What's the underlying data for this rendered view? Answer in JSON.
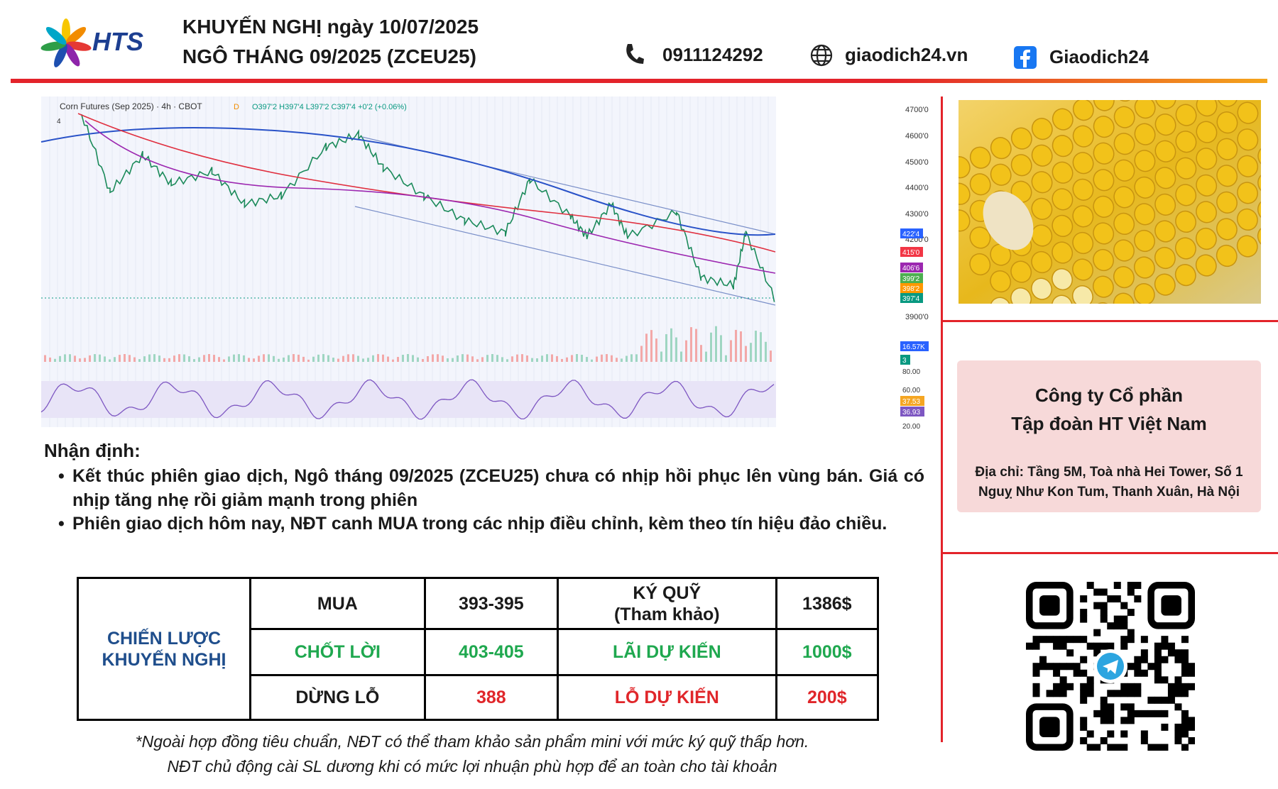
{
  "header": {
    "logo": "HTS",
    "title_line1": "KHUYẾN NGHỊ ngày 10/07/2025",
    "title_line2": "NGÔ THÁNG 09/2025 (ZCEU25)",
    "phone": "0911124292",
    "website": "giaodich24.vn",
    "facebook": "Giaodich24"
  },
  "chart_panel": {
    "symbol": "Corn Futures (Sep 2025) · 4h · CBOT",
    "ohlc": "O397'2 H397'4 L397'2 C397'4 +0'2 (+0.06%)",
    "interval_badge": "D",
    "collapse": "4",
    "price_axis": [
      "4700'0",
      "4600'0",
      "4500'0",
      "4400'0",
      "4300'0",
      "4200'0",
      "3900'0"
    ],
    "price_tags": [
      "422'4",
      "415'0",
      "406'6",
      "399'2",
      "398'2",
      "397'4"
    ],
    "volume_tags": [
      "16.57K",
      "3"
    ],
    "rsi_axis": [
      "80.00",
      "60.00",
      "37.53",
      "36.93",
      "20.00"
    ]
  },
  "analysis": {
    "heading": "Nhận định:",
    "bullets": [
      "Kết thúc phiên giao dịch, Ngô tháng 09/2025 (ZCEU25) chưa có nhịp hồi phục lên vùng bán. Giá có nhịp tăng nhẹ rồi giảm mạnh trong phiên",
      "Phiên giao dịch hôm nay, NĐT canh MUA trong các nhịp điều chỉnh, kèm theo tín hiệu đảo chiều."
    ]
  },
  "table": {
    "label": "CHIẾN LƯỢC KHUYẾN NGHỊ",
    "rows": [
      [
        "MUA",
        "393-395",
        "KÝ QUỸ\n(Tham khảo)",
        "1386$"
      ],
      [
        "CHỐT LỜI",
        "403-405",
        "LÃI DỰ KIẾN",
        "1000$"
      ],
      [
        "DỪNG LỖ",
        "388",
        "LỖ DỰ KIẾN",
        "200$"
      ]
    ]
  },
  "footnotes": [
    "*Ngoài hợp đồng tiêu chuẩn, NĐT có thể tham khảo sản phẩm mini với mức ký quỹ thấp hơn.",
    "NĐT chủ động cài SL dương khi có mức lợi nhuận phù hợp để an toàn cho tài khoản"
  ],
  "company": {
    "name_line1": "Công ty Cổ phần",
    "name_line2": "Tập đoàn HT Việt Nam",
    "address": "Địa chỉ: Tầng 5M, Toà nhà Hei Tower, Số 1 Nguỵ Như Kon Tum, Thanh Xuân, Hà Nội"
  }
}
